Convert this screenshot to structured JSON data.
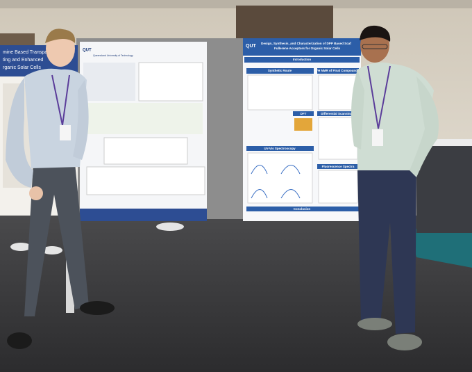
{
  "posters": [
    {
      "title_lines": [
        "mine Based Transparent",
        "ting and Enhanced",
        "rganic Solar Cells"
      ]
    },
    {
      "logo": "QUT",
      "institution": "Queensland University of Technology"
    },
    {
      "logo": "QUT",
      "title_lines": [
        "Design, Synthesis, and Characterization of DPP Based Scaf",
        "Fullerene Acceptors for Organic Solar Cells"
      ],
      "sections": [
        "Introduction",
        "Synthetic Route",
        "¹H NMR of Final Compounds",
        "DFT",
        "Differential Scanning C",
        "UV-Vis Spectroscopy",
        "Fluorescence Spectra",
        "Conclusion"
      ]
    }
  ]
}
